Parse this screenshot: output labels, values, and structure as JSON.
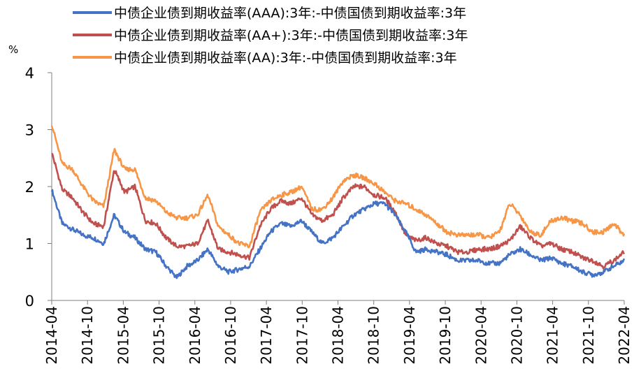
{
  "chart_data": {
    "type": "line",
    "unit_label": "%",
    "ylim": [
      0,
      4
    ],
    "yticks": [
      "0",
      "1",
      "2",
      "3",
      "4"
    ],
    "xticks": [
      "2014-04",
      "2014-10",
      "2015-04",
      "2015-10",
      "2016-04",
      "2016-10",
      "2017-04",
      "2017-10",
      "2018-04",
      "2018-10",
      "2019-04",
      "2019-10",
      "2020-04",
      "2020-10",
      "2021-04",
      "2021-10",
      "2022-04"
    ],
    "grid": false,
    "legend_position": "top",
    "series": [
      {
        "name": "中债企业债到期收益率(AAA):3年:-中债国债到期收益率:3年",
        "color": "#4472C4",
        "values": [
          1.95,
          1.35,
          1.25,
          1.15,
          1.1,
          1.0,
          1.5,
          1.2,
          1.1,
          0.9,
          0.85,
          0.6,
          0.4,
          0.6,
          0.7,
          0.9,
          0.6,
          0.5,
          0.55,
          0.6,
          0.9,
          1.2,
          1.35,
          1.3,
          1.4,
          1.2,
          1.0,
          1.1,
          1.3,
          1.5,
          1.6,
          1.7,
          1.7,
          1.5,
          1.2,
          0.85,
          0.9,
          0.85,
          0.8,
          0.7,
          0.7,
          0.7,
          0.65,
          0.65,
          0.8,
          0.9,
          0.8,
          0.7,
          0.75,
          0.65,
          0.6,
          0.5,
          0.45,
          0.5,
          0.6,
          0.7
        ]
      },
      {
        "name": "中债企业债到期收益率(AA+):3年:-中债国债到期收益率:3年",
        "color": "#C0504D",
        "values": [
          2.6,
          1.95,
          1.8,
          1.55,
          1.35,
          1.3,
          2.3,
          1.9,
          2.0,
          1.4,
          1.35,
          1.1,
          0.95,
          0.95,
          1.0,
          1.4,
          0.9,
          0.85,
          0.8,
          0.75,
          1.3,
          1.6,
          1.75,
          1.7,
          1.8,
          1.5,
          1.4,
          1.5,
          1.8,
          2.0,
          2.0,
          1.85,
          1.8,
          1.55,
          1.15,
          1.05,
          1.1,
          1.0,
          0.95,
          0.85,
          0.85,
          0.9,
          0.9,
          0.95,
          1.05,
          1.3,
          1.1,
          0.95,
          1.0,
          0.9,
          0.85,
          0.75,
          0.7,
          0.6,
          0.7,
          0.85
        ]
      },
      {
        "name": "中债企业债到期收益率(AA):3年:-中债国债到期收益率:3年",
        "color": "#F79646",
        "values": [
          3.1,
          2.4,
          2.3,
          2.0,
          1.75,
          1.65,
          2.65,
          2.3,
          2.3,
          1.8,
          1.75,
          1.55,
          1.45,
          1.45,
          1.5,
          1.85,
          1.3,
          1.15,
          1.0,
          0.95,
          1.55,
          1.75,
          1.85,
          1.9,
          2.0,
          1.6,
          1.6,
          1.8,
          2.1,
          2.2,
          2.15,
          2.05,
          1.9,
          1.75,
          1.7,
          1.6,
          1.5,
          1.35,
          1.2,
          1.15,
          1.15,
          1.15,
          1.1,
          1.2,
          1.7,
          1.5,
          1.2,
          1.15,
          1.4,
          1.45,
          1.4,
          1.35,
          1.2,
          1.2,
          1.35,
          1.15
        ]
      }
    ]
  }
}
